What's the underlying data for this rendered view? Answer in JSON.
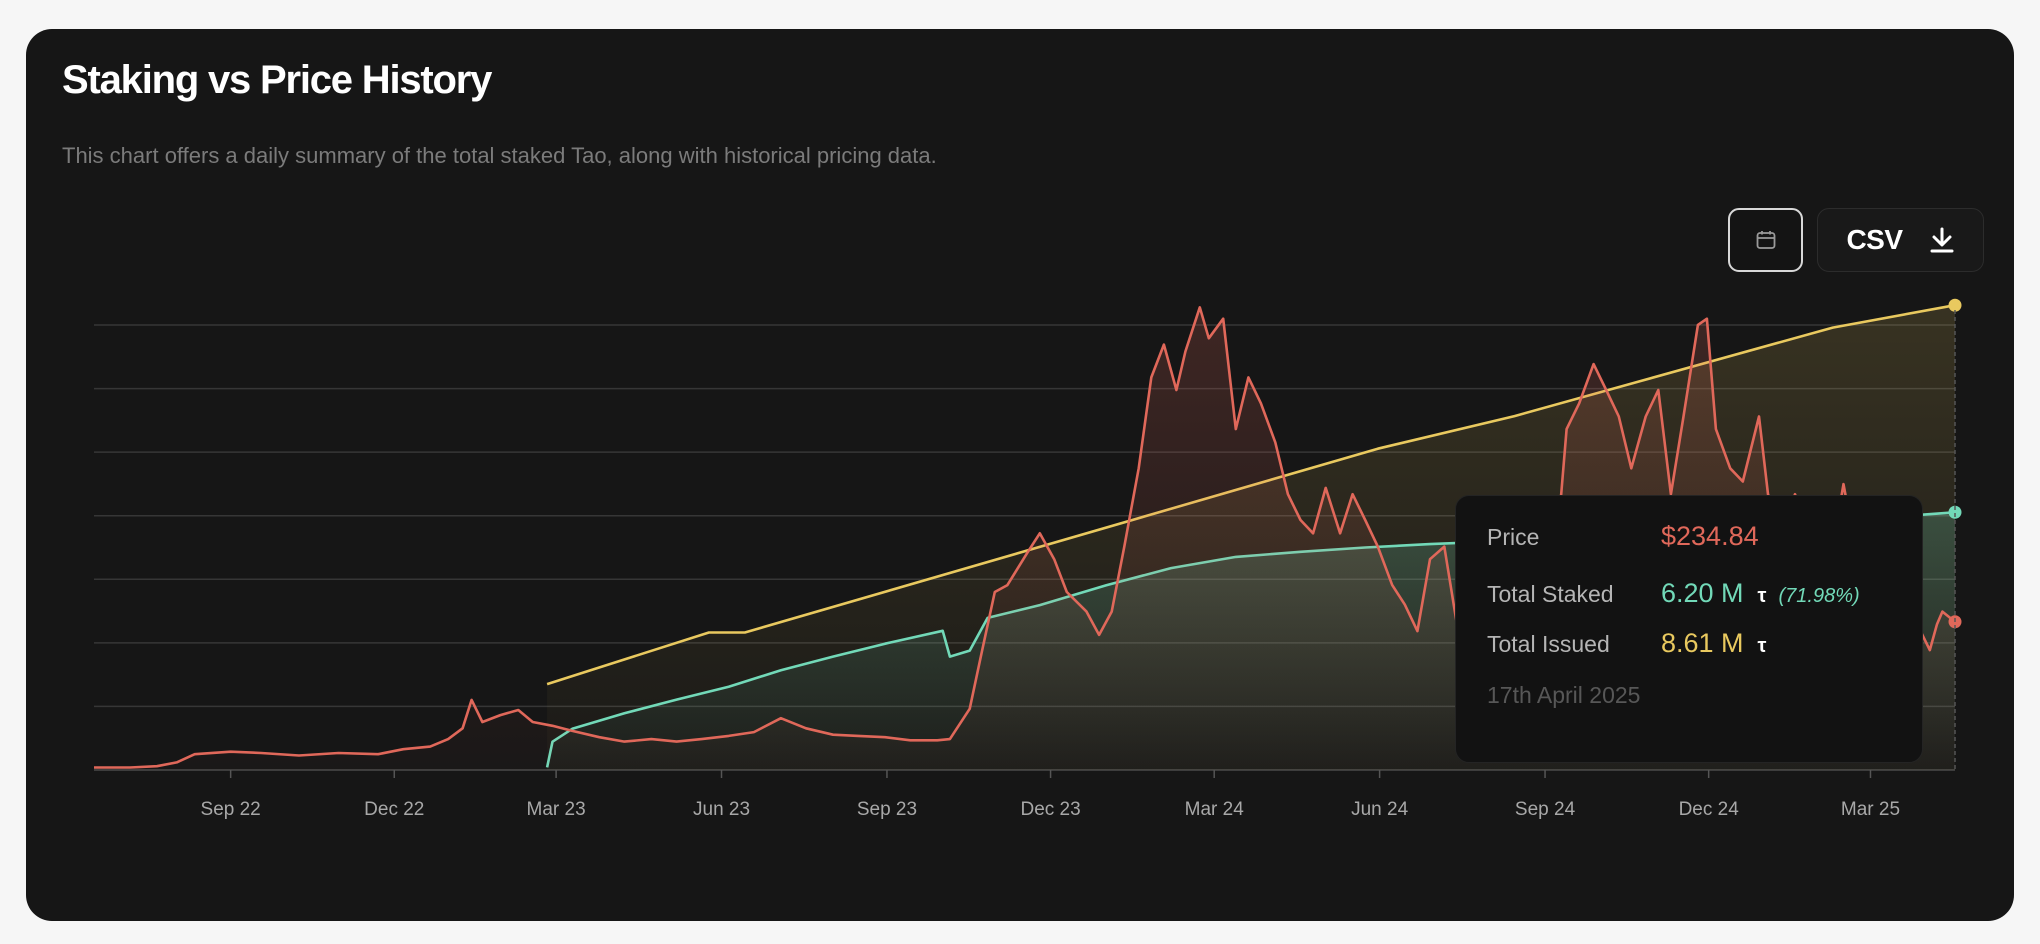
{
  "header": {
    "title": "Staking vs Price History",
    "subtitle": "This chart offers a daily summary of the total staked Tao, along with historical pricing data."
  },
  "toolbar": {
    "calendar_icon": "calendar-icon",
    "csv_label": "CSV",
    "download_icon": "download-icon"
  },
  "tooltip": {
    "price_label": "Price",
    "price_value": "$234.84",
    "staked_label": "Total Staked",
    "staked_value": "6.20 M",
    "staked_unit": "τ",
    "staked_pct": "(71.98%)",
    "issued_label": "Total Issued",
    "issued_value": "8.61 M",
    "issued_unit": "τ",
    "date": "17th April 2025"
  },
  "chart_data": {
    "type": "line",
    "title": "Staking vs Price History",
    "xlabel": "",
    "ylabel": "",
    "grid": true,
    "x_tick_labels": [
      "Sep 22",
      "Dec 22",
      "Mar 23",
      "Jun 23",
      "Sep 23",
      "Dec 23",
      "Mar 24",
      "Jun 24",
      "Sep 24",
      "Dec 24",
      "Mar 25"
    ],
    "x_tick_dates": [
      "2022-09-01",
      "2022-12-01",
      "2023-03-01",
      "2023-06-01",
      "2023-09-01",
      "2023-12-01",
      "2024-03-01",
      "2024-06-01",
      "2024-09-01",
      "2024-12-01",
      "2025-03-01"
    ],
    "price_ylim": [
      0,
      705
    ],
    "supply_ylim": [
      3.2,
      8.38
    ],
    "colors": {
      "price": "#e0685a",
      "staked": "#72d9b8",
      "issued": "#e9c95f"
    },
    "series": [
      {
        "key": "price",
        "unit": "USD",
        "points": [
          [
            "2022-06-17",
            4
          ],
          [
            "2022-07-07",
            4
          ],
          [
            "2022-07-22",
            6
          ],
          [
            "2022-08-02",
            12
          ],
          [
            "2022-08-12",
            25
          ],
          [
            "2022-09-01",
            29
          ],
          [
            "2022-09-18",
            27
          ],
          [
            "2022-10-09",
            23
          ],
          [
            "2022-10-31",
            27
          ],
          [
            "2022-11-22",
            25
          ],
          [
            "2022-12-06",
            33
          ],
          [
            "2022-12-21",
            37
          ],
          [
            "2022-12-31",
            49
          ],
          [
            "2023-01-08",
            66
          ],
          [
            "2023-01-13",
            111
          ],
          [
            "2023-01-19",
            76
          ],
          [
            "2023-01-29",
            87
          ],
          [
            "2023-02-08",
            95
          ],
          [
            "2023-02-16",
            76
          ],
          [
            "2023-02-27",
            70
          ],
          [
            "2023-03-10",
            62
          ],
          [
            "2023-03-25",
            52
          ],
          [
            "2023-04-08",
            45
          ],
          [
            "2023-04-23",
            49
          ],
          [
            "2023-05-07",
            45
          ],
          [
            "2023-05-21",
            49
          ],
          [
            "2023-06-05",
            54
          ],
          [
            "2023-06-19",
            60
          ],
          [
            "2023-07-04",
            82
          ],
          [
            "2023-07-18",
            66
          ],
          [
            "2023-08-02",
            56
          ],
          [
            "2023-08-16",
            54
          ],
          [
            "2023-08-31",
            52
          ],
          [
            "2023-09-14",
            47
          ],
          [
            "2023-09-29",
            47
          ],
          [
            "2023-10-06",
            49
          ],
          [
            "2023-10-17",
            97
          ],
          [
            "2023-10-24",
            190
          ],
          [
            "2023-10-31",
            282
          ],
          [
            "2023-11-07",
            293
          ],
          [
            "2023-11-18",
            344
          ],
          [
            "2023-11-25",
            375
          ],
          [
            "2023-12-03",
            334
          ],
          [
            "2023-12-10",
            282
          ],
          [
            "2023-12-21",
            251
          ],
          [
            "2023-12-28",
            214
          ],
          [
            "2024-01-04",
            251
          ],
          [
            "2024-01-11",
            354
          ],
          [
            "2024-01-19",
            478
          ],
          [
            "2024-01-26",
            622
          ],
          [
            "2024-02-02",
            674
          ],
          [
            "2024-02-09",
            602
          ],
          [
            "2024-02-14",
            663
          ],
          [
            "2024-02-22",
            733
          ],
          [
            "2024-02-27",
            684
          ],
          [
            "2024-03-06",
            715
          ],
          [
            "2024-03-13",
            540
          ],
          [
            "2024-03-20",
            622
          ],
          [
            "2024-03-27",
            581
          ],
          [
            "2024-04-04",
            519
          ],
          [
            "2024-04-11",
            437
          ],
          [
            "2024-04-18",
            396
          ],
          [
            "2024-04-25",
            375
          ],
          [
            "2024-05-02",
            447
          ],
          [
            "2024-05-10",
            375
          ],
          [
            "2024-05-17",
            437
          ],
          [
            "2024-05-24",
            396
          ],
          [
            "2024-05-31",
            354
          ],
          [
            "2024-06-08",
            293
          ],
          [
            "2024-06-15",
            262
          ],
          [
            "2024-06-22",
            220
          ],
          [
            "2024-06-29",
            334
          ],
          [
            "2024-07-07",
            354
          ],
          [
            "2024-07-14",
            231
          ],
          [
            "2024-07-21",
            313
          ],
          [
            "2024-07-28",
            354
          ],
          [
            "2024-08-04",
            251
          ],
          [
            "2024-08-12",
            313
          ],
          [
            "2024-08-19",
            241
          ],
          [
            "2024-08-26",
            231
          ],
          [
            "2024-09-02",
            313
          ],
          [
            "2024-09-10",
            437
          ],
          [
            "2024-09-13",
            540
          ],
          [
            "2024-09-20",
            581
          ],
          [
            "2024-09-28",
            643
          ],
          [
            "2024-10-05",
            602
          ],
          [
            "2024-10-12",
            560
          ],
          [
            "2024-10-19",
            478
          ],
          [
            "2024-10-27",
            560
          ],
          [
            "2024-11-03",
            602
          ],
          [
            "2024-11-10",
            437
          ],
          [
            "2024-11-17",
            560
          ],
          [
            "2024-11-25",
            705
          ],
          [
            "2024-11-30",
            715
          ],
          [
            "2024-12-05",
            540
          ],
          [
            "2024-12-13",
            478
          ],
          [
            "2024-12-20",
            457
          ],
          [
            "2024-12-29",
            560
          ],
          [
            "2025-01-03",
            437
          ],
          [
            "2025-01-11",
            375
          ],
          [
            "2025-01-18",
            437
          ],
          [
            "2025-01-25",
            375
          ],
          [
            "2025-02-01",
            396
          ],
          [
            "2025-02-08",
            354
          ],
          [
            "2025-02-14",
            453
          ],
          [
            "2025-02-19",
            375
          ],
          [
            "2025-02-27",
            293
          ],
          [
            "2025-03-06",
            231
          ],
          [
            "2025-03-13",
            241
          ],
          [
            "2025-03-20",
            251
          ],
          [
            "2025-03-27",
            231
          ],
          [
            "2025-04-03",
            190
          ],
          [
            "2025-04-07",
            231
          ],
          [
            "2025-04-10",
            251
          ],
          [
            "2025-04-17",
            234.84
          ]
        ]
      },
      {
        "key": "staked",
        "unit": "M τ",
        "points": [
          [
            "2023-02-24",
            3.23
          ],
          [
            "2023-02-27",
            3.53
          ],
          [
            "2023-03-10",
            3.68
          ],
          [
            "2023-04-08",
            3.86
          ],
          [
            "2023-05-07",
            4.02
          ],
          [
            "2023-06-05",
            4.17
          ],
          [
            "2023-07-04",
            4.36
          ],
          [
            "2023-08-02",
            4.52
          ],
          [
            "2023-08-31",
            4.67
          ],
          [
            "2023-10-02",
            4.82
          ],
          [
            "2023-10-06",
            4.52
          ],
          [
            "2023-10-17",
            4.59
          ],
          [
            "2023-10-27",
            4.97
          ],
          [
            "2023-11-25",
            5.12
          ],
          [
            "2024-01-01",
            5.35
          ],
          [
            "2024-02-06",
            5.55
          ],
          [
            "2024-03-13",
            5.68
          ],
          [
            "2024-04-18",
            5.74
          ],
          [
            "2024-05-24",
            5.79
          ],
          [
            "2024-06-29",
            5.83
          ],
          [
            "2024-08-04",
            5.86
          ],
          [
            "2024-09-10",
            5.91
          ],
          [
            "2024-10-16",
            5.95
          ],
          [
            "2024-11-21",
            6.0
          ],
          [
            "2024-12-28",
            6.05
          ],
          [
            "2025-02-01",
            6.08
          ],
          [
            "2025-03-09",
            6.14
          ],
          [
            "2025-04-17",
            6.2
          ]
        ]
      },
      {
        "key": "issued",
        "unit": "M τ",
        "points": [
          [
            "2023-02-24",
            4.2
          ],
          [
            "2023-05-25",
            4.8
          ],
          [
            "2023-06-14",
            4.8
          ],
          [
            "2024-05-31",
            6.94
          ],
          [
            "2024-08-15",
            7.32
          ],
          [
            "2025-02-08",
            8.35
          ],
          [
            "2025-04-17",
            8.61
          ]
        ]
      }
    ]
  }
}
